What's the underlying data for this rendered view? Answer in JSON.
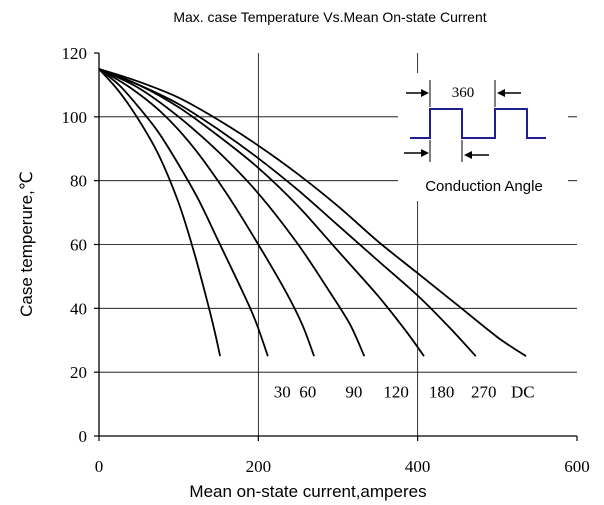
{
  "chart_data": {
    "type": "line",
    "title": "Max. case Temperature Vs.Mean On-state Current",
    "xlabel": "Mean on-state current,amperes",
    "ylabel": "Case temperure,℃",
    "xlim": [
      0,
      600
    ],
    "ylim": [
      0,
      120
    ],
    "x_ticks": [
      "0",
      "200",
      "400",
      "600"
    ],
    "y_ticks": [
      "0",
      "20",
      "40",
      "60",
      "80",
      "100",
      "120"
    ],
    "x_tick_values": [
      0,
      200,
      400,
      600
    ],
    "y_tick_values": [
      0,
      20,
      40,
      60,
      80,
      100,
      120
    ],
    "grid": "major gridlines at x=200, 400 and y=20..100",
    "series": [
      {
        "name": "30",
        "label_x": 230,
        "points": [
          [
            0,
            115
          ],
          [
            25,
            108
          ],
          [
            50,
            99
          ],
          [
            75,
            88
          ],
          [
            100,
            73
          ],
          [
            120,
            57
          ],
          [
            135,
            43
          ],
          [
            145,
            33
          ],
          [
            152,
            25
          ]
        ]
      },
      {
        "name": "60",
        "label_x": 262,
        "points": [
          [
            0,
            115
          ],
          [
            25,
            110
          ],
          [
            50,
            103
          ],
          [
            75,
            95
          ],
          [
            100,
            85
          ],
          [
            125,
            74
          ],
          [
            150,
            61
          ],
          [
            175,
            48
          ],
          [
            195,
            37
          ],
          [
            212,
            25
          ]
        ]
      },
      {
        "name": "90",
        "label_x": 320,
        "points": [
          [
            0,
            115
          ],
          [
            40,
            109
          ],
          [
            80,
            101
          ],
          [
            120,
            90
          ],
          [
            160,
            76
          ],
          [
            200,
            60
          ],
          [
            235,
            45
          ],
          [
            255,
            35
          ],
          [
            270,
            25
          ]
        ]
      },
      {
        "name": "120",
        "label_x": 373,
        "points": [
          [
            0,
            115
          ],
          [
            50,
            109
          ],
          [
            100,
            100
          ],
          [
            150,
            89
          ],
          [
            200,
            76
          ],
          [
            250,
            60
          ],
          [
            290,
            45
          ],
          [
            315,
            35
          ],
          [
            333,
            25
          ]
        ]
      },
      {
        "name": "180",
        "label_x": 430,
        "points": [
          [
            0,
            115
          ],
          [
            50,
            110
          ],
          [
            100,
            103
          ],
          [
            150,
            94
          ],
          [
            200,
            84
          ],
          [
            250,
            72
          ],
          [
            300,
            58
          ],
          [
            350,
            44
          ],
          [
            385,
            33
          ],
          [
            408,
            25
          ]
        ]
      },
      {
        "name": "270",
        "label_x": 483,
        "points": [
          [
            0,
            115
          ],
          [
            50,
            110
          ],
          [
            100,
            104
          ],
          [
            150,
            96
          ],
          [
            200,
            87
          ],
          [
            250,
            77
          ],
          [
            300,
            66
          ],
          [
            350,
            55
          ],
          [
            400,
            44
          ],
          [
            440,
            34
          ],
          [
            473,
            25
          ]
        ]
      },
      {
        "name": "DC",
        "label_x": 532,
        "points": [
          [
            0,
            115
          ],
          [
            50,
            111
          ],
          [
            100,
            106
          ],
          [
            150,
            99
          ],
          [
            200,
            91
          ],
          [
            250,
            82
          ],
          [
            300,
            72
          ],
          [
            350,
            61
          ],
          [
            400,
            51
          ],
          [
            450,
            41
          ],
          [
            500,
            31
          ],
          [
            536,
            25
          ]
        ]
      }
    ],
    "curve_labels_y": 14,
    "colors": {
      "curves": "#000000",
      "axes": "#000000",
      "grid": "#000000",
      "waveform": "#1f1f8f"
    }
  },
  "inset": {
    "period_label": "360",
    "conduction_label": "Conduction Angle"
  }
}
